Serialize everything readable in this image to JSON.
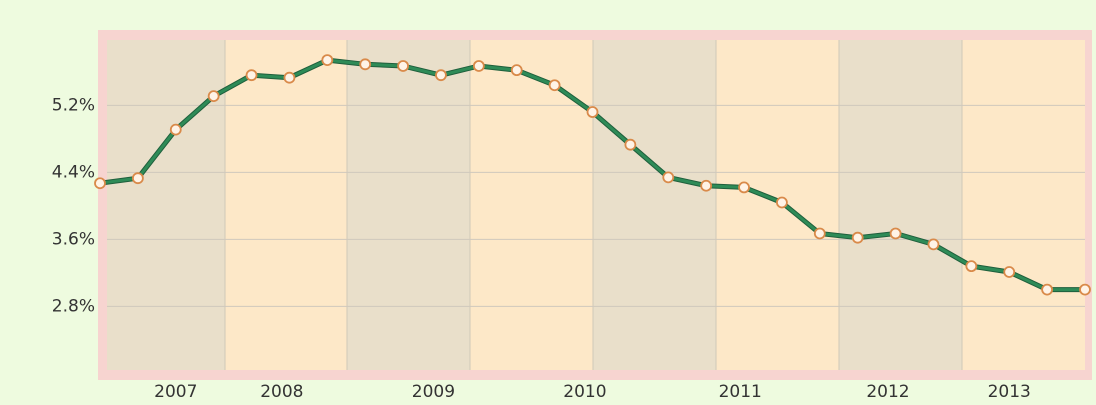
{
  "chart_data": {
    "type": "line",
    "x": [
      0,
      1,
      2,
      3,
      4,
      5,
      6,
      7,
      8,
      9,
      10,
      11,
      12,
      13,
      14,
      15,
      16,
      17,
      18,
      19,
      20,
      21,
      22,
      23,
      24,
      25,
      26
    ],
    "series": [
      {
        "color": "#2e8b57",
        "values": [
          4.27,
          4.33,
          4.91,
          5.31,
          5.56,
          5.53,
          5.74,
          5.69,
          5.67,
          5.56,
          5.67,
          5.62,
          5.44,
          5.12,
          4.73,
          4.34,
          4.24,
          4.22,
          4.04,
          3.67,
          3.62,
          3.67,
          3.54,
          3.28,
          3.21,
          3.0,
          3.0
        ]
      }
    ],
    "xlim": [
      0,
      26
    ],
    "xticks": [
      {
        "value": 2,
        "label": "2007"
      },
      {
        "value": 4.8,
        "label": "2008"
      },
      {
        "value": 8.8,
        "label": "2009"
      },
      {
        "value": 12.8,
        "label": "2010"
      },
      {
        "value": 16.9,
        "label": "2011"
      },
      {
        "value": 20.8,
        "label": "2012"
      },
      {
        "value": 24,
        "label": "2013"
      }
    ],
    "ylim": [
      2.04,
      5.98
    ],
    "yticks": [
      {
        "value": 2.8,
        "label": "2.8%"
      },
      {
        "value": 3.6,
        "label": "3.6%"
      },
      {
        "value": 4.4,
        "label": "4.4%"
      },
      {
        "value": 5.2,
        "label": "5.2%"
      }
    ],
    "grid": true
  }
}
